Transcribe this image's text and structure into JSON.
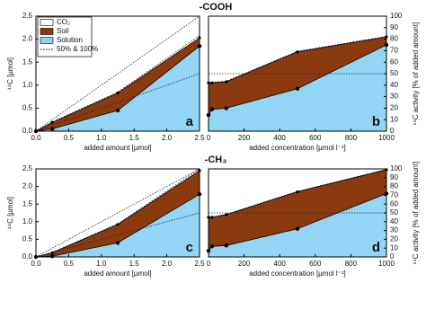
{
  "sections": [
    "-COOH",
    "-CH₃"
  ],
  "chart_data": [
    {
      "type": "area",
      "panel": "a",
      "xlabel": "added amount [µmol]",
      "ylabel": "¹⁴C [µmol]",
      "y_axis_side": "left",
      "xlim": [
        0,
        2.5
      ],
      "ylim": [
        0,
        2.5
      ],
      "xticks": [
        {
          "value": 0,
          "label": "0.0"
        },
        0.5,
        {
          "value": 1,
          "label": "1.0"
        },
        1.5,
        {
          "value": 2,
          "label": "2.0"
        },
        2.5
      ],
      "yticks": [
        {
          "value": 0,
          "label": "0.0"
        },
        0.5,
        {
          "value": 1,
          "label": "1.0"
        },
        1.5,
        {
          "value": 2,
          "label": "2.0"
        },
        2.5
      ],
      "x": [
        0,
        0.25,
        1.25,
        2.5
      ],
      "series": [
        {
          "name": "Solution",
          "color": "#93d5f5",
          "values": [
            0,
            0.05,
            0.45,
            1.85
          ]
        },
        {
          "name": "Soil",
          "color": "#8b3a0f",
          "values": [
            0,
            0.14,
            0.38,
            0.18
          ]
        },
        {
          "name": "CO₂",
          "color": "#ffffff",
          "values": [
            0,
            0.01,
            0.02,
            0.05
          ]
        }
      ],
      "reference_name": "50% & 100%",
      "reference_lines": [
        {
          "x": [
            0,
            2.5
          ],
          "y": [
            0,
            2.5
          ]
        },
        {
          "x": [
            0,
            2.5
          ],
          "y": [
            0,
            1.25
          ]
        }
      ],
      "legend": "upper left"
    },
    {
      "type": "area",
      "panel": "b",
      "xlabel": "added concentration [µmol l⁻¹]",
      "ylabel": "¹⁴C activity [% of added amount]",
      "y_axis_side": "right",
      "xlim": [
        0,
        1000
      ],
      "ylim": [
        0,
        100
      ],
      "xticks": [
        0,
        200,
        400,
        600,
        800,
        1000
      ],
      "yticks": [
        0,
        10,
        20,
        30,
        40,
        50,
        60,
        70,
        80,
        90,
        100
      ],
      "x": [
        0,
        20,
        100,
        500,
        1000
      ],
      "series": [
        {
          "color": "#93d5f5",
          "values": [
            14,
            19,
            20,
            37,
            75
          ]
        },
        {
          "color": "#8b3a0f",
          "values": [
            28,
            23,
            23,
            32,
            7
          ]
        },
        {
          "color": "#ffffff",
          "values": [
            0.5,
            0.5,
            0.5,
            0.5,
            0.5
          ]
        }
      ],
      "reference_lines": [
        {
          "x": [
            0,
            1000
          ],
          "y": [
            50,
            50
          ]
        },
        {
          "x": [
            0,
            1000
          ],
          "y": [
            100,
            100
          ]
        }
      ]
    },
    {
      "type": "area",
      "panel": "c",
      "xlabel": "added amount [µmol]",
      "ylabel": "¹⁴C [µmol]",
      "y_axis_side": "left",
      "xlim": [
        0,
        2.5
      ],
      "ylim": [
        0,
        2.5
      ],
      "xticks": [
        {
          "value": 0,
          "label": "0.0"
        },
        0.5,
        {
          "value": 1,
          "label": "1.0"
        },
        1.5,
        {
          "value": 2,
          "label": "2.0"
        },
        2.5
      ],
      "yticks": [
        {
          "value": 0,
          "label": "0.0"
        },
        0.5,
        {
          "value": 1,
          "label": "1.0"
        },
        1.5,
        {
          "value": 2,
          "label": "2.0"
        },
        2.5
      ],
      "x": [
        0,
        0.25,
        1.25,
        2.5
      ],
      "series": [
        {
          "color": "#93d5f5",
          "values": [
            0,
            0.02,
            0.4,
            1.78
          ]
        },
        {
          "color": "#8b3a0f",
          "values": [
            0,
            0.1,
            0.52,
            0.67
          ]
        },
        {
          "color": "#ffffff",
          "values": [
            0,
            0.01,
            0.02,
            0.05
          ]
        }
      ],
      "reference_lines": [
        {
          "x": [
            0,
            2.5
          ],
          "y": [
            0,
            2.5
          ]
        },
        {
          "x": [
            0,
            2.5
          ],
          "y": [
            0,
            1.25
          ]
        }
      ]
    },
    {
      "type": "area",
      "panel": "d",
      "xlabel": "added concentration [µmol l⁻¹]",
      "ylabel": "¹⁴C activity [% of added amount]",
      "y_axis_side": "right",
      "xlim": [
        0,
        1000
      ],
      "ylim": [
        0,
        100
      ],
      "xticks": [
        0,
        200,
        400,
        600,
        800,
        1000
      ],
      "yticks": [
        0,
        10,
        20,
        30,
        40,
        50,
        60,
        70,
        80,
        90,
        100
      ],
      "x": [
        0,
        20,
        100,
        500,
        1000
      ],
      "series": [
        {
          "color": "#93d5f5",
          "values": [
            7,
            12,
            13,
            32,
            72
          ]
        },
        {
          "color": "#8b3a0f",
          "values": [
            38,
            33,
            35,
            42,
            27
          ]
        },
        {
          "color": "#ffffff",
          "values": [
            0.5,
            0.5,
            0.5,
            0.5,
            0.5
          ]
        }
      ],
      "reference_lines": [
        {
          "x": [
            0,
            1000
          ],
          "y": [
            50,
            50
          ]
        },
        {
          "x": [
            0,
            1000
          ],
          "y": [
            100,
            100
          ]
        }
      ]
    }
  ]
}
